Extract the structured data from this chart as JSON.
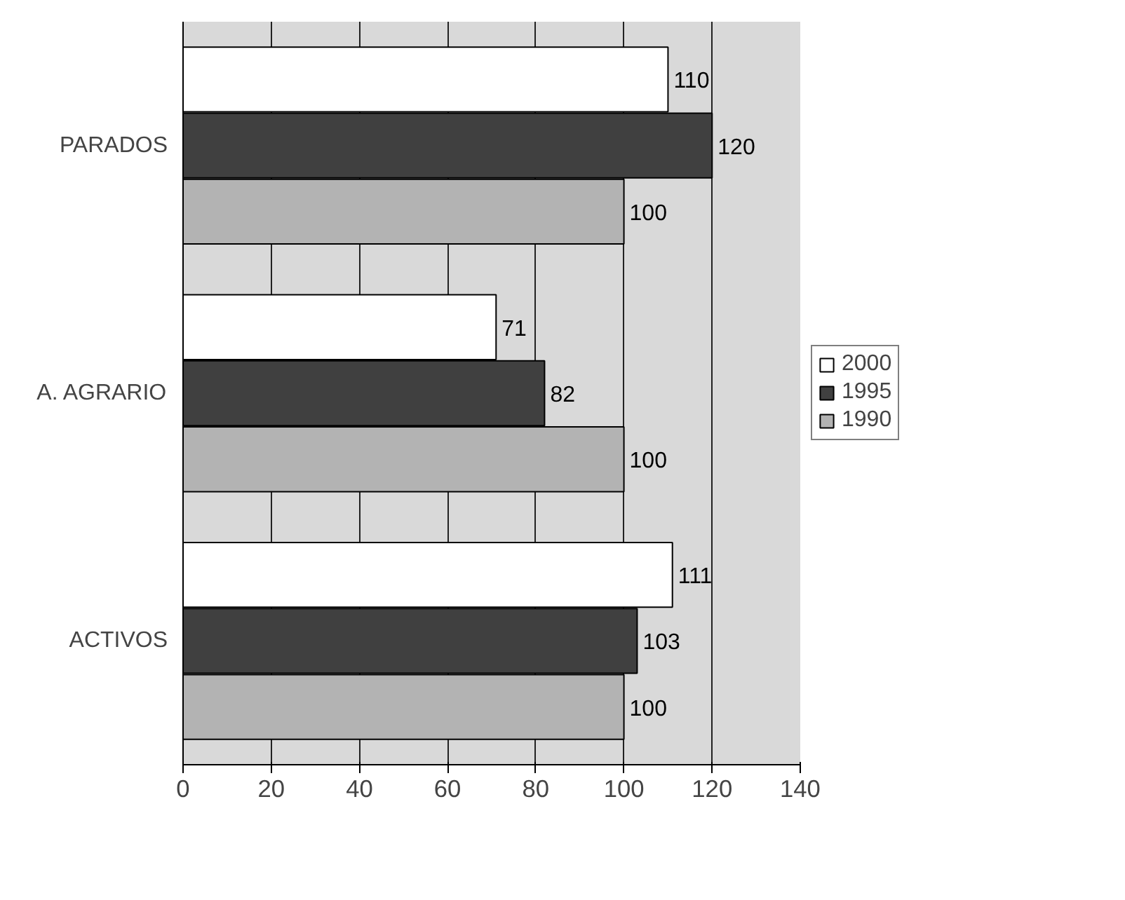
{
  "chart_data": {
    "type": "bar",
    "orientation": "horizontal",
    "categories": [
      "PARADOS",
      "A. AGRARIO",
      "ACTIVOS"
    ],
    "series": [
      {
        "name": "2000",
        "color": "#ffffff",
        "values": [
          110,
          71,
          111
        ]
      },
      {
        "name": "1995",
        "color": "#404040",
        "values": [
          120,
          82,
          103
        ]
      },
      {
        "name": "1990",
        "color": "#b3b3b3",
        "values": [
          100,
          100,
          100
        ]
      }
    ],
    "xlim": [
      0,
      140
    ],
    "xticks": [
      0,
      20,
      40,
      60,
      80,
      100,
      120,
      140
    ],
    "grid": "x",
    "legend": "right",
    "data_labels": true
  }
}
